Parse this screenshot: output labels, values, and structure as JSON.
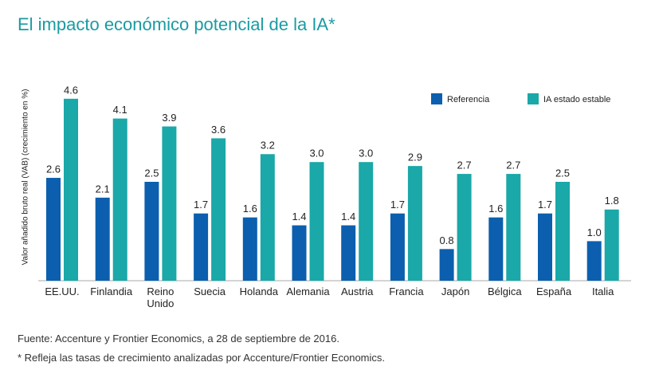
{
  "chart_data": {
    "type": "grouped-bar",
    "title": "El impacto económico potencial de la IA*",
    "y_label": "Valor añadido bruto real (VAB) (crecimiento en %)",
    "categories": [
      "EE.UU.",
      "Finlandia",
      "Reino Unido",
      "Suecia",
      "Holanda",
      "Alemania",
      "Austria",
      "Francia",
      "Japón",
      "Bélgica",
      "España",
      "Italia"
    ],
    "series": [
      {
        "name": "Referencia",
        "color": "#0b5fae",
        "values": [
          2.6,
          2.1,
          2.5,
          1.7,
          1.6,
          1.4,
          1.4,
          1.7,
          0.8,
          1.6,
          1.7,
          1.0
        ],
        "value_labels": [
          "2.6",
          "2.1",
          "2.5",
          "1.7",
          "1.6",
          "1.4",
          "1.4",
          "1.7",
          "0.8",
          "1.6",
          "1.7",
          "1.0"
        ]
      },
      {
        "name": "IA estado estable",
        "color": "#1aa8a8",
        "values": [
          4.6,
          4.1,
          3.9,
          3.6,
          3.2,
          3.0,
          3.0,
          2.9,
          2.7,
          2.7,
          2.5,
          1.8
        ],
        "value_labels": [
          "4.6",
          "4.1",
          "3.9",
          "3.6",
          "3.2",
          "3.0",
          "3.0",
          "2.9",
          "2.7",
          "2.7",
          "2.5",
          "1.8"
        ]
      }
    ],
    "ylim": [
      0,
      5
    ],
    "legend": "top-right"
  },
  "notes": [
    "Fuente: Accenture y Frontier Economics, a 28 de septiembre de 2016.",
    "* Refleja las tasas de crecimiento analizadas por Accenture/Frontier Economics."
  ]
}
